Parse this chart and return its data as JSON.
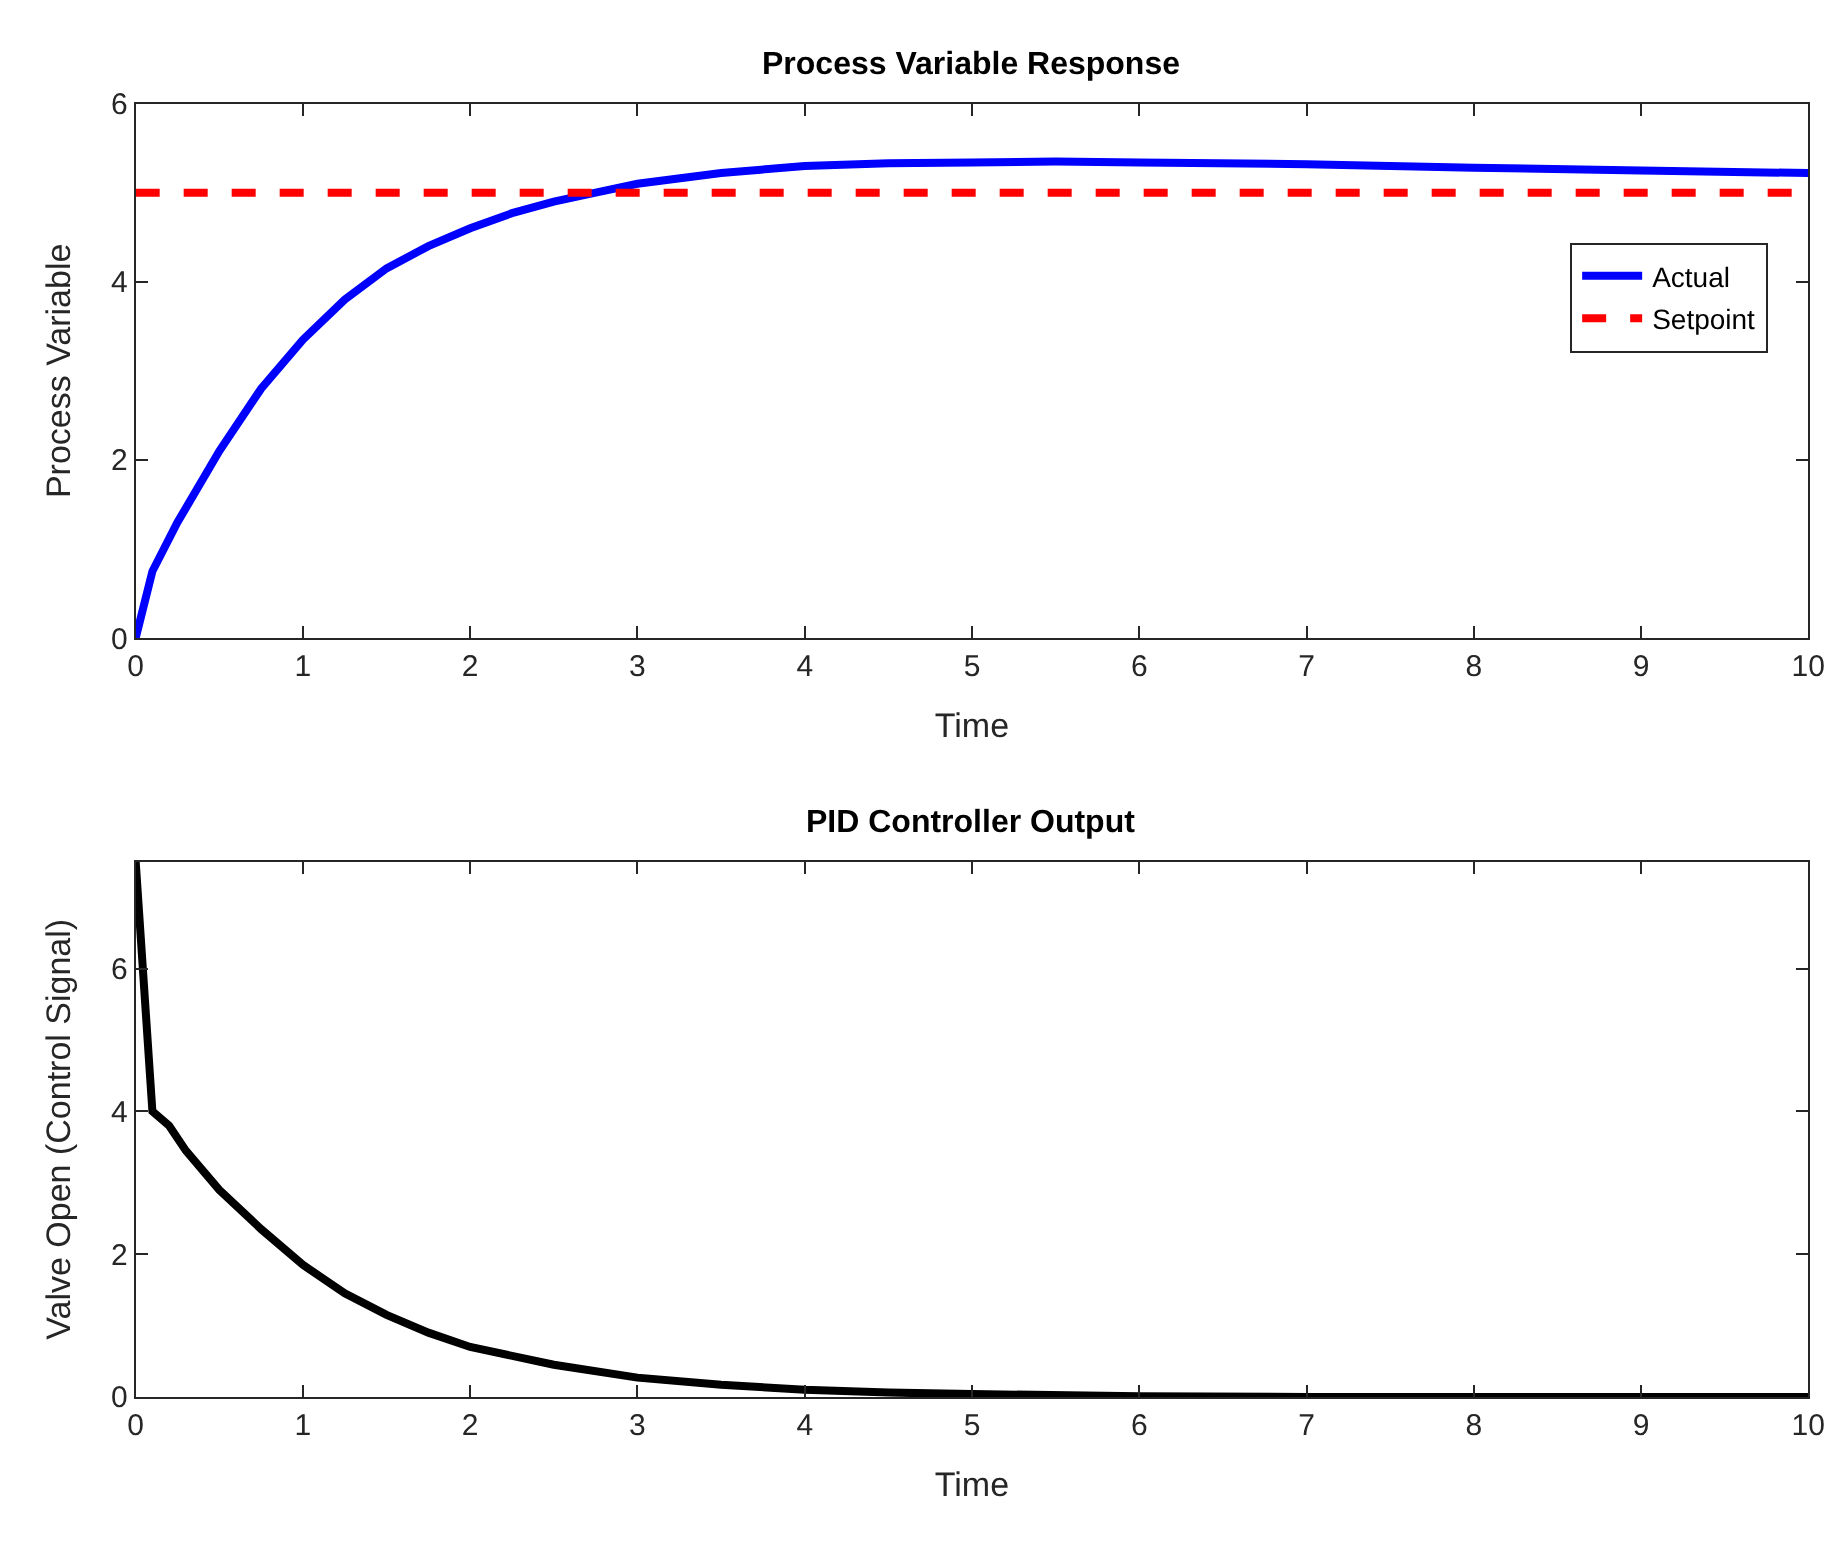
{
  "chart_data": [
    {
      "type": "line",
      "title": "Process Variable Response",
      "xlabel": "Time",
      "ylabel": "Process Variable",
      "xlim": [
        0,
        10
      ],
      "xticks": [
        0,
        1,
        2,
        3,
        4,
        5,
        6,
        7,
        8,
        9,
        10
      ],
      "ylim": [
        0,
        6
      ],
      "yticks": [
        0,
        2,
        4,
        6
      ],
      "legend": "top right",
      "series": [
        {
          "name": "Actual",
          "color": "#0000ff",
          "line_style": "solid",
          "x": [
            0,
            0.1,
            0.25,
            0.5,
            0.75,
            1,
            1.25,
            1.5,
            1.75,
            2,
            2.25,
            2.5,
            2.75,
            3,
            3.5,
            4,
            4.5,
            5,
            5.5,
            6,
            7,
            8,
            9,
            10
          ],
          "values": [
            0,
            0.75,
            1.3,
            2.1,
            2.8,
            3.35,
            3.8,
            4.15,
            4.4,
            4.6,
            4.77,
            4.9,
            5.0,
            5.1,
            5.22,
            5.3,
            5.33,
            5.34,
            5.35,
            5.34,
            5.32,
            5.28,
            5.25,
            5.22
          ]
        },
        {
          "name": "Setpoint",
          "color": "#ff0000",
          "line_style": "dashed",
          "x": [
            0,
            10
          ],
          "values": [
            5,
            5
          ]
        }
      ]
    },
    {
      "type": "line",
      "title": "PID Controller Output",
      "xlabel": "Time",
      "ylabel": "Valve Open (Control Signal)",
      "xlim": [
        0,
        10
      ],
      "xticks": [
        0,
        1,
        2,
        3,
        4,
        5,
        6,
        7,
        8,
        9,
        10
      ],
      "ylim": [
        0,
        7.5
      ],
      "yticks": [
        0,
        2,
        4,
        6
      ],
      "legend": false,
      "series": [
        {
          "color": "#000000",
          "line_style": "solid",
          "x": [
            0,
            0.1,
            0.2,
            0.3,
            0.5,
            0.75,
            1,
            1.25,
            1.5,
            1.75,
            2,
            2.5,
            3,
            3.5,
            4,
            4.5,
            5,
            6,
            7,
            8,
            9,
            10
          ],
          "values": [
            7.5,
            4.0,
            3.8,
            3.45,
            2.9,
            2.35,
            1.85,
            1.45,
            1.15,
            0.9,
            0.7,
            0.45,
            0.27,
            0.17,
            0.1,
            0.06,
            0.04,
            0.01,
            0,
            0,
            0,
            0
          ]
        }
      ]
    }
  ]
}
